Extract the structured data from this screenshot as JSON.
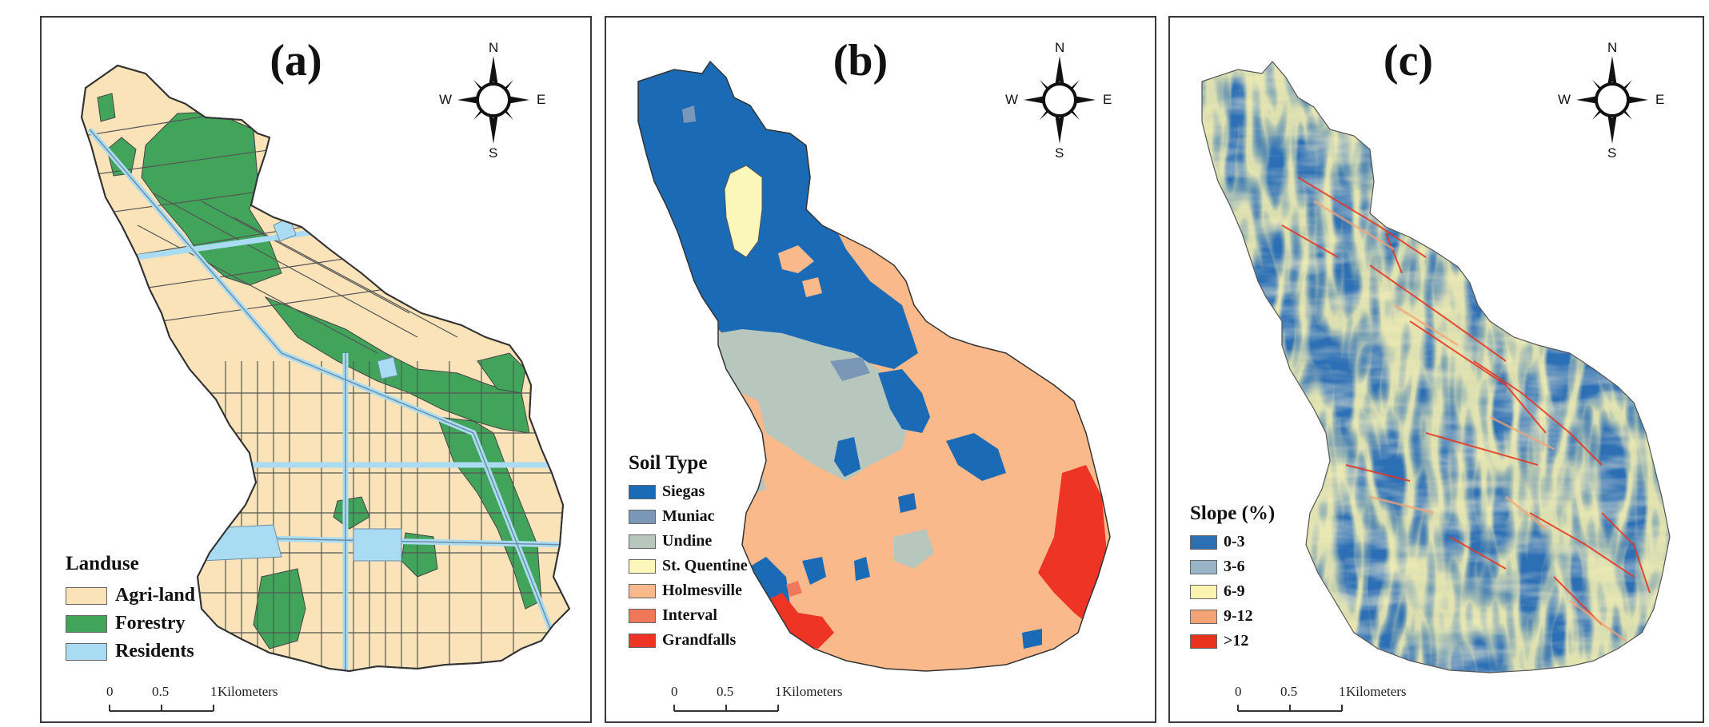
{
  "panels": [
    {
      "label": "(a)",
      "legend": {
        "title": "Landuse",
        "items": [
          {
            "label": "Agri-land",
            "color": "#fae3b8"
          },
          {
            "label": "Forestry",
            "color": "#41a45a"
          },
          {
            "label": "Residents",
            "color": "#a9dcf3"
          }
        ]
      }
    },
    {
      "label": "(b)",
      "legend": {
        "title": "Soil Type",
        "items": [
          {
            "label": "Siegas",
            "color": "#1b6ab5"
          },
          {
            "label": "Muniac",
            "color": "#7b97b8"
          },
          {
            "label": "Undine",
            "color": "#b7c7bd"
          },
          {
            "label": "St. Quentine",
            "color": "#fbf6b9"
          },
          {
            "label": "Holmesville",
            "color": "#f9b98a"
          },
          {
            "label": "Interval",
            "color": "#f0785a"
          },
          {
            "label": "Grandfalls",
            "color": "#ee3424"
          }
        ]
      }
    },
    {
      "label": "(c)",
      "legend": {
        "title": "Slope (%)",
        "items": [
          {
            "label": "0-3",
            "color": "#2c6fb5"
          },
          {
            "label": "3-6",
            "color": "#98b4c6"
          },
          {
            "label": "6-9",
            "color": "#fbf3b0"
          },
          {
            "label": "9-12",
            "color": "#f4a375"
          },
          {
            "label": "&gt;12",
            "color": "#e8331f"
          }
        ]
      }
    }
  ],
  "compass": {
    "n": "N",
    "s": "S",
    "e": "E",
    "w": "W"
  },
  "scalebar": {
    "ticks": [
      "0",
      "0.5",
      "1"
    ],
    "unit": "Kilometers"
  }
}
